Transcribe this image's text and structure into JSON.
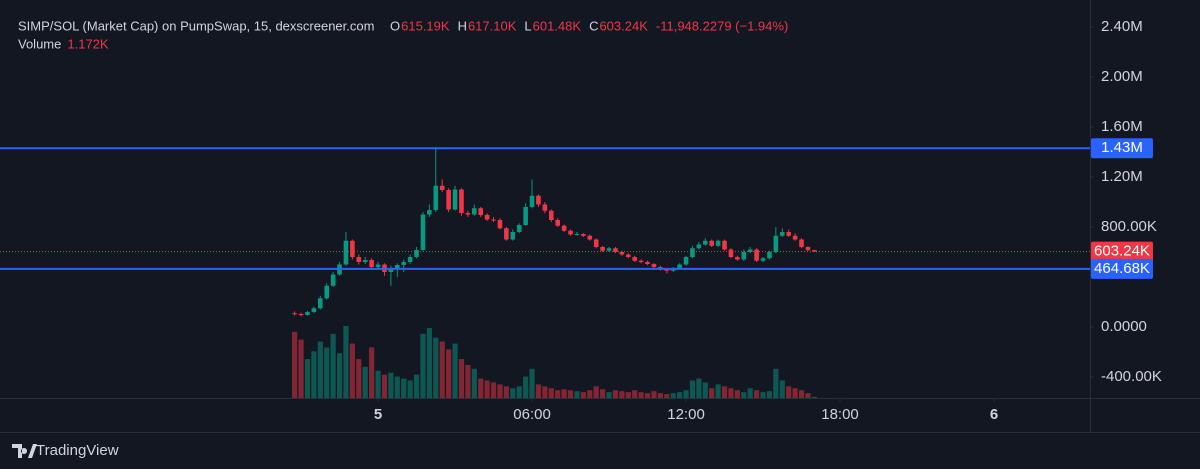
{
  "chart_data": {
    "type": "candlestick",
    "header": {
      "title": "SIMP/SOL (Market Cap) on PumpSwap, 15, dexscreener.com",
      "open_key": "O",
      "open_label": "615.19K",
      "high_key": "H",
      "high_label": "617.10K",
      "low_key": "L",
      "low_label": "601.48K",
      "close_key": "C",
      "close_label": "603.24K",
      "change_label": "-11,948.2279 (−1.94%)",
      "volume_key": "Volume",
      "volume_label": "1.172K"
    },
    "brand": "TradingView",
    "up_color": "#089981",
    "down_color": "#f23645",
    "xlim": [
      -14.73,
      27.74
    ],
    "xticks": [
      {
        "value": 0,
        "label": "5"
      },
      {
        "value": 6,
        "label": "06:00"
      },
      {
        "value": 12,
        "label": "12:00"
      },
      {
        "value": 18,
        "label": "18:00"
      },
      {
        "value": 24,
        "label": "6"
      }
    ],
    "ylim": [
      -568000,
      2616000
    ],
    "yticks": [
      {
        "value": 2400000,
        "label": "2.40M"
      },
      {
        "value": 2000000,
        "label": "2.00M"
      },
      {
        "value": 1600000,
        "label": "1.60M"
      },
      {
        "value": 1200000,
        "label": "1.20M"
      },
      {
        "value": 800000,
        "label": "800.00K"
      },
      {
        "value": 0,
        "label": "0.0000"
      },
      {
        "value": -400000,
        "label": "-400.00K"
      }
    ],
    "price_lines": [
      {
        "value": 1430000,
        "label": "1.43M",
        "color": "#2962ff"
      },
      {
        "value": 464680,
        "label": "464.68K",
        "color": "#2962ff"
      }
    ],
    "last_price_label": "603.24K",
    "x": [
      -3.25,
      -3,
      -2.75,
      -2.5,
      -2.25,
      -2,
      -1.75,
      -1.5,
      -1.25,
      -1,
      -0.75,
      -0.5,
      -0.25,
      0,
      0.25,
      0.5,
      0.75,
      1,
      1.25,
      1.5,
      1.75,
      2,
      2.25,
      2.5,
      2.75,
      3,
      3.25,
      3.5,
      3.75,
      4,
      4.25,
      4.5,
      4.75,
      5,
      5.25,
      5.5,
      5.75,
      6,
      6.25,
      6.5,
      6.75,
      7,
      7.25,
      7.5,
      7.75,
      8,
      8.25,
      8.5,
      8.75,
      9,
      9.25,
      9.5,
      9.75,
      10,
      10.25,
      10.5,
      10.75,
      11,
      11.25,
      11.5,
      11.75,
      12,
      12.25,
      12.5,
      12.75,
      13,
      13.25,
      13.5,
      13.75,
      14,
      14.25,
      14.5,
      14.75,
      15,
      15.25,
      15.5,
      15.75,
      16,
      16.25,
      16.5,
      16.75,
      17
    ],
    "open": [
      110000,
      104000,
      96000,
      120000,
      150000,
      230000,
      330000,
      420000,
      500000,
      690000,
      560000,
      520000,
      536000,
      480000,
      500000,
      440000,
      472000,
      496000,
      520000,
      560000,
      616000,
      900000,
      936000,
      1130000,
      1096000,
      940000,
      1100000,
      912000,
      900000,
      950000,
      896000,
      860000,
      856000,
      790000,
      700000,
      760000,
      816000,
      960000,
      1050000,
      980000,
      930000,
      856000,
      810000,
      770000,
      740000,
      744000,
      730000,
      700000,
      640000,
      610000,
      630000,
      600000,
      580000,
      560000,
      530000,
      520000,
      504000,
      480000,
      460000,
      450000,
      470000,
      500000,
      560000,
      630000,
      660000,
      690000,
      650000,
      690000,
      620000,
      560000,
      540000,
      600000,
      620000,
      530000,
      550000,
      600000,
      730000,
      760000,
      730000,
      700000,
      640000,
      615190
    ],
    "high": [
      125000,
      115000,
      130000,
      165000,
      250000,
      350000,
      440000,
      520000,
      760000,
      700000,
      580000,
      560000,
      550000,
      520000,
      510000,
      490000,
      510000,
      540000,
      580000,
      640000,
      920000,
      980000,
      1440000,
      1180000,
      1110000,
      1130000,
      1110000,
      930000,
      980000,
      960000,
      910000,
      880000,
      870000,
      800000,
      780000,
      830000,
      990000,
      1180000,
      1060000,
      1000000,
      940000,
      870000,
      820000,
      780000,
      760000,
      750000,
      740000,
      710000,
      650000,
      640000,
      640000,
      610000,
      590000,
      570000,
      540000,
      530000,
      510000,
      490000,
      470000,
      480000,
      510000,
      570000,
      650000,
      680000,
      710000,
      700000,
      700000,
      700000,
      630000,
      570000,
      620000,
      640000,
      630000,
      560000,
      610000,
      800000,
      790000,
      780000,
      750000,
      710000,
      645000,
      617100
    ],
    "low": [
      90000,
      85000,
      90000,
      110000,
      140000,
      220000,
      320000,
      410000,
      490000,
      540000,
      500000,
      505000,
      460000,
      470000,
      410000,
      330000,
      400000,
      440000,
      505000,
      550000,
      610000,
      880000,
      920000,
      1080000,
      920000,
      930000,
      890000,
      880000,
      890000,
      880000,
      850000,
      840000,
      780000,
      690000,
      690000,
      750000,
      810000,
      950000,
      960000,
      910000,
      840000,
      800000,
      760000,
      730000,
      730000,
      720000,
      690000,
      630000,
      600000,
      600000,
      590000,
      570000,
      550000,
      520000,
      510000,
      495000,
      470000,
      450000,
      430000,
      440000,
      460000,
      490000,
      550000,
      620000,
      650000,
      640000,
      640000,
      610000,
      550000,
      530000,
      530000,
      590000,
      520000,
      520000,
      540000,
      590000,
      720000,
      720000,
      690000,
      630000,
      605000,
      601480
    ],
    "close": [
      104000,
      96000,
      120000,
      150000,
      230000,
      330000,
      420000,
      500000,
      690000,
      560000,
      520000,
      536000,
      480000,
      500000,
      440000,
      472000,
      496000,
      520000,
      560000,
      616000,
      900000,
      936000,
      1130000,
      1096000,
      940000,
      1100000,
      912000,
      900000,
      950000,
      896000,
      860000,
      856000,
      790000,
      700000,
      760000,
      816000,
      960000,
      1050000,
      980000,
      930000,
      856000,
      810000,
      770000,
      740000,
      744000,
      730000,
      700000,
      640000,
      610000,
      630000,
      600000,
      580000,
      560000,
      530000,
      520000,
      504000,
      480000,
      460000,
      450000,
      470000,
      500000,
      560000,
      630000,
      660000,
      690000,
      650000,
      690000,
      620000,
      560000,
      540000,
      600000,
      620000,
      530000,
      550000,
      600000,
      730000,
      760000,
      730000,
      700000,
      640000,
      615190,
      603240
    ],
    "volume": [
      68000,
      60000,
      40000,
      48000,
      58000,
      52000,
      66000,
      46000,
      74000,
      56000,
      40000,
      32000,
      52000,
      28000,
      24000,
      26000,
      22000,
      20000,
      18000,
      24000,
      66000,
      72000,
      62000,
      58000,
      50000,
      56000,
      40000,
      34000,
      30000,
      20000,
      18000,
      16000,
      14000,
      12000,
      10000,
      12000,
      22000,
      30000,
      14000,
      12000,
      10000,
      8000,
      9000,
      8000,
      7000,
      6000,
      8000,
      12000,
      9000,
      6000,
      8000,
      7000,
      6000,
      8000,
      6000,
      5000,
      7000,
      5000,
      4000,
      5000,
      6000,
      8000,
      18000,
      20000,
      16000,
      10000,
      14000,
      12000,
      10000,
      8000,
      6000,
      10000,
      8000,
      6000,
      7000,
      30000,
      18000,
      12000,
      10000,
      8000,
      5000,
      1172
    ]
  }
}
